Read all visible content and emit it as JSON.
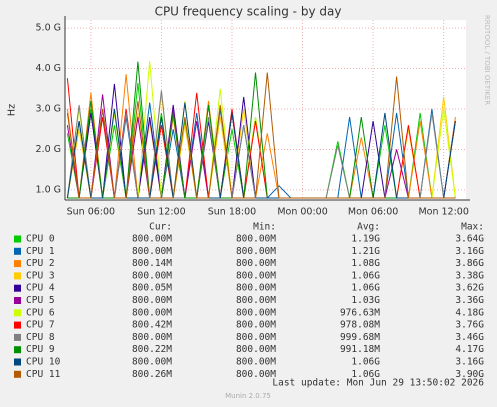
{
  "chart_data": {
    "type": "line",
    "title": "CPU frequency scaling - by day",
    "y_label": "Hz",
    "watermark": "RRDTOOL / TOBI OETIKER",
    "x": [
      4,
      5,
      6,
      7,
      8,
      9,
      10,
      11,
      12,
      13,
      14,
      15,
      16,
      17,
      18,
      19,
      20,
      21,
      22,
      23,
      24,
      25,
      26,
      27,
      28,
      29,
      30,
      31,
      32,
      33,
      34,
      35,
      36,
      37
    ],
    "xlim": [
      3.8,
      37.9
    ],
    "xticks": [
      {
        "value": 6,
        "label": "Sun 06:00"
      },
      {
        "value": 12,
        "label": "Sun 12:00"
      },
      {
        "value": 18,
        "label": "Sun 18:00"
      },
      {
        "value": 24,
        "label": "Mon 00:00"
      },
      {
        "value": 30,
        "label": "Mon 06:00"
      },
      {
        "value": 36,
        "label": "Mon 12:00"
      }
    ],
    "ylim": [
      750000000,
      5200000000
    ],
    "yticks": [
      {
        "value": 1000000000,
        "label": "1.0 G"
      },
      {
        "value": 2000000000,
        "label": "2.0 G"
      },
      {
        "value": 3000000000,
        "label": "3.0 G"
      },
      {
        "value": 4000000000,
        "label": "4.0 G"
      },
      {
        "value": 5000000000,
        "label": "5.0 G"
      }
    ],
    "grid": true,
    "legend_columns": [
      "Cur:",
      "Min:",
      "Avg:",
      "Max:"
    ],
    "series": [
      {
        "name": "CPU 0",
        "color": "#00cc00",
        "cur": "800.00M",
        "min": "800.00M",
        "avg": "1.19G",
        "max": "3.64G",
        "values": [
          2400000000.0,
          800000000.0,
          3000000000.0,
          800000000.0,
          2600000000.0,
          800000000.0,
          3640000000.0,
          800000000.0,
          2900000000.0,
          800000000.0,
          2700000000.0,
          800000000.0,
          3100000000.0,
          800000000.0,
          2500000000.0,
          800000000.0,
          2800000000.0,
          800000000.0,
          800000000.0,
          800000000.0,
          800000000.0,
          800000000.0,
          800000000.0,
          2200000000.0,
          800000000.0,
          800000000.0,
          800000000.0,
          2600000000.0,
          800000000.0,
          800000000.0,
          2900000000.0,
          800000000.0,
          800000000.0,
          800000000.0
        ]
      },
      {
        "name": "CPU 1",
        "color": "#0066b3",
        "cur": "800.00M",
        "min": "800.00M",
        "avg": "1.21G",
        "max": "3.16G",
        "values": [
          800000000.0,
          2700000000.0,
          800000000.0,
          3000000000.0,
          800000000.0,
          2800000000.0,
          800000000.0,
          3160000000.0,
          800000000.0,
          2500000000.0,
          800000000.0,
          2900000000.0,
          800000000.0,
          3000000000.0,
          800000000.0,
          2600000000.0,
          800000000.0,
          800000000.0,
          1100000000.0,
          800000000.0,
          800000000.0,
          800000000.0,
          800000000.0,
          800000000.0,
          2800000000.0,
          800000000.0,
          800000000.0,
          800000000.0,
          2900000000.0,
          800000000.0,
          800000000.0,
          3000000000.0,
          800000000.0,
          800000000.0
        ]
      },
      {
        "name": "CPU 2",
        "color": "#ff8000",
        "cur": "800.14M",
        "min": "800.00M",
        "avg": "1.08G",
        "max": "3.86G",
        "values": [
          3000000000.0,
          800000000.0,
          3400000000.0,
          800000000.0,
          800000000.0,
          3860000000.0,
          800000000.0,
          2700000000.0,
          800000000.0,
          2800000000.0,
          800000000.0,
          800000000.0,
          3200000000.0,
          800000000.0,
          2900000000.0,
          800000000.0,
          800000000.0,
          2400000000.0,
          800000000.0,
          800000000.0,
          800000000.0,
          800000000.0,
          800000000.0,
          800000000.0,
          800000000.0,
          2300000000.0,
          800000000.0,
          800000000.0,
          800000000.0,
          800000000.0,
          2700000000.0,
          800000000.0,
          800000000.0,
          2800000000.0
        ]
      },
      {
        "name": "CPU 3",
        "color": "#ffcc00",
        "cur": "800.00M",
        "min": "800.00M",
        "avg": "1.06G",
        "max": "3.38G",
        "values": [
          800000000.0,
          2500000000.0,
          800000000.0,
          800000000.0,
          3000000000.0,
          800000000.0,
          2900000000.0,
          800000000.0,
          3380000000.0,
          800000000.0,
          2600000000.0,
          800000000.0,
          800000000.0,
          2800000000.0,
          800000000.0,
          3000000000.0,
          800000000.0,
          800000000.0,
          800000000.0,
          800000000.0,
          800000000.0,
          800000000.0,
          800000000.0,
          800000000.0,
          800000000.0,
          800000000.0,
          800000000.0,
          800000000.0,
          800000000.0,
          2500000000.0,
          800000000.0,
          800000000.0,
          3300000000.0,
          800000000.0
        ]
      },
      {
        "name": "CPU 4",
        "color": "#330099",
        "cur": "800.05M",
        "min": "800.00M",
        "avg": "1.06G",
        "max": "3.62G",
        "values": [
          800000000.0,
          800000000.0,
          2900000000.0,
          800000000.0,
          3620000000.0,
          800000000.0,
          800000000.0,
          2800000000.0,
          800000000.0,
          3100000000.0,
          800000000.0,
          800000000.0,
          2700000000.0,
          800000000.0,
          800000000.0,
          3300000000.0,
          800000000.0,
          800000000.0,
          800000000.0,
          800000000.0,
          800000000.0,
          800000000.0,
          800000000.0,
          800000000.0,
          800000000.0,
          800000000.0,
          2700000000.0,
          800000000.0,
          800000000.0,
          800000000.0,
          800000000.0,
          800000000.0,
          800000000.0,
          2700000000.0
        ]
      },
      {
        "name": "CPU 5",
        "color": "#990099",
        "cur": "800.00M",
        "min": "800.00M",
        "avg": "1.03G",
        "max": "3.36G",
        "values": [
          2600000000.0,
          800000000.0,
          800000000.0,
          3360000000.0,
          800000000.0,
          800000000.0,
          2800000000.0,
          800000000.0,
          800000000.0,
          3000000000.0,
          800000000.0,
          2700000000.0,
          800000000.0,
          800000000.0,
          2900000000.0,
          800000000.0,
          800000000.0,
          800000000.0,
          800000000.0,
          800000000.0,
          800000000.0,
          800000000.0,
          800000000.0,
          800000000.0,
          800000000.0,
          800000000.0,
          800000000.0,
          800000000.0,
          2000000000.0,
          800000000.0,
          800000000.0,
          800000000.0,
          800000000.0,
          800000000.0
        ]
      },
      {
        "name": "CPU 6",
        "color": "#ccff00",
        "cur": "800.00M",
        "min": "800.00M",
        "avg": "976.63M",
        "max": "4.18G",
        "values": [
          800000000.0,
          3000000000.0,
          800000000.0,
          800000000.0,
          2900000000.0,
          800000000.0,
          800000000.0,
          4180000000.0,
          800000000.0,
          800000000.0,
          3200000000.0,
          800000000.0,
          800000000.0,
          3500000000.0,
          800000000.0,
          800000000.0,
          2800000000.0,
          800000000.0,
          800000000.0,
          800000000.0,
          800000000.0,
          800000000.0,
          800000000.0,
          800000000.0,
          800000000.0,
          800000000.0,
          800000000.0,
          800000000.0,
          800000000.0,
          800000000.0,
          800000000.0,
          800000000.0,
          3000000000.0,
          800000000.0
        ]
      },
      {
        "name": "CPU 7",
        "color": "#ff0000",
        "cur": "800.42M",
        "min": "800.00M",
        "avg": "978.08M",
        "max": "3.76G",
        "values": [
          3760000000.0,
          800000000.0,
          800000000.0,
          2800000000.0,
          800000000.0,
          3000000000.0,
          800000000.0,
          800000000.0,
          2600000000.0,
          800000000.0,
          800000000.0,
          3400000000.0,
          800000000.0,
          800000000.0,
          3000000000.0,
          800000000.0,
          2700000000.0,
          800000000.0,
          800000000.0,
          800000000.0,
          800000000.0,
          800000000.0,
          800000000.0,
          800000000.0,
          800000000.0,
          800000000.0,
          800000000.0,
          800000000.0,
          800000000.0,
          2600000000.0,
          800000000.0,
          800000000.0,
          800000000.0,
          800000000.0
        ]
      },
      {
        "name": "CPU 8",
        "color": "#808080",
        "cur": "800.00M",
        "min": "800.00M",
        "avg": "999.68M",
        "max": "3.46G",
        "values": [
          800000000.0,
          3100000000.0,
          800000000.0,
          800000000.0,
          800000000.0,
          2900000000.0,
          800000000.0,
          800000000.0,
          3460000000.0,
          800000000.0,
          800000000.0,
          800000000.0,
          2800000000.0,
          800000000.0,
          800000000.0,
          2600000000.0,
          800000000.0,
          800000000.0,
          800000000.0,
          800000000.0,
          800000000.0,
          800000000.0,
          800000000.0,
          2100000000.0,
          800000000.0,
          800000000.0,
          800000000.0,
          800000000.0,
          800000000.0,
          800000000.0,
          800000000.0,
          2900000000.0,
          800000000.0,
          800000000.0
        ]
      },
      {
        "name": "CPU 9",
        "color": "#008f00",
        "cur": "800.22M",
        "min": "800.00M",
        "avg": "991.18M",
        "max": "4.17G",
        "values": [
          800000000.0,
          800000000.0,
          3200000000.0,
          800000000.0,
          800000000.0,
          800000000.0,
          4170000000.0,
          800000000.0,
          800000000.0,
          2900000000.0,
          800000000.0,
          800000000.0,
          3100000000.0,
          800000000.0,
          800000000.0,
          800000000.0,
          3900000000.0,
          800000000.0,
          800000000.0,
          800000000.0,
          800000000.0,
          800000000.0,
          800000000.0,
          800000000.0,
          800000000.0,
          2800000000.0,
          800000000.0,
          800000000.0,
          800000000.0,
          800000000.0,
          800000000.0,
          800000000.0,
          800000000.0,
          800000000.0
        ]
      },
      {
        "name": "CPU 10",
        "color": "#00487d",
        "cur": "800.00M",
        "min": "800.00M",
        "avg": "1.06G",
        "max": "3.16G",
        "values": [
          800000000.0,
          2700000000.0,
          800000000.0,
          800000000.0,
          3000000000.0,
          800000000.0,
          800000000.0,
          800000000.0,
          2800000000.0,
          800000000.0,
          3160000000.0,
          800000000.0,
          800000000.0,
          800000000.0,
          2900000000.0,
          800000000.0,
          800000000.0,
          800000000.0,
          800000000.0,
          800000000.0,
          800000000.0,
          800000000.0,
          800000000.0,
          800000000.0,
          800000000.0,
          800000000.0,
          800000000.0,
          2900000000.0,
          800000000.0,
          800000000.0,
          800000000.0,
          800000000.0,
          800000000.0,
          2700000000.0
        ]
      },
      {
        "name": "CPU 11",
        "color": "#b35a00",
        "cur": "800.26M",
        "min": "800.00M",
        "avg": "1.06G",
        "max": "3.90G",
        "values": [
          2900000000.0,
          800000000.0,
          800000000.0,
          3000000000.0,
          800000000.0,
          800000000.0,
          3200000000.0,
          800000000.0,
          800000000.0,
          800000000.0,
          2800000000.0,
          800000000.0,
          800000000.0,
          3100000000.0,
          800000000.0,
          800000000.0,
          800000000.0,
          3900000000.0,
          800000000.0,
          800000000.0,
          800000000.0,
          800000000.0,
          800000000.0,
          800000000.0,
          800000000.0,
          800000000.0,
          800000000.0,
          800000000.0,
          3800000000.0,
          800000000.0,
          800000000.0,
          800000000.0,
          800000000.0,
          800000000.0
        ]
      }
    ],
    "last_update": "Last update: Mon Jun 29 13:50:02 2026",
    "footer": "Munin 2.0.75"
  }
}
